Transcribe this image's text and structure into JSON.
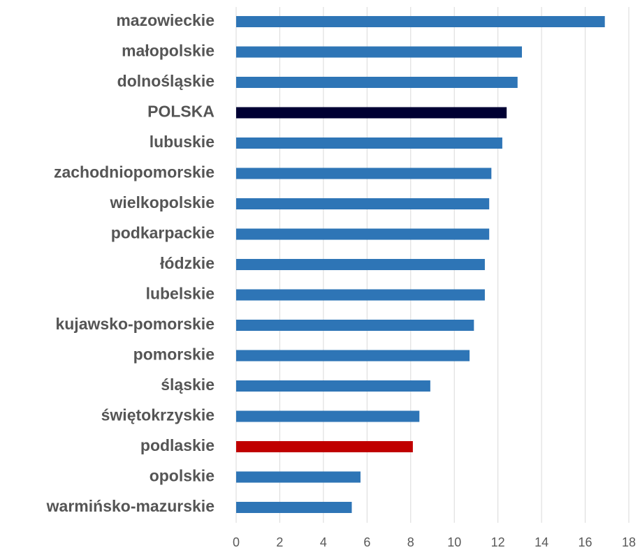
{
  "chart_data": {
    "type": "barh",
    "categories": [
      "mazowieckie",
      "małopolskie",
      "dolnośląskie",
      "POLSKA",
      "lubuskie",
      "zachodniopomorskie",
      "wielkopolskie",
      "podkarpackie",
      "łódzkie",
      "lubelskie",
      "kujawsko-pomorskie",
      "pomorskie",
      "śląskie",
      "świętokrzyskie",
      "podlaskie",
      "opolskie",
      "warmińsko-mazurskie"
    ],
    "values": [
      16.9,
      13.1,
      12.9,
      12.4,
      12.2,
      11.7,
      11.6,
      11.6,
      11.4,
      11.4,
      10.9,
      10.7,
      8.9,
      8.4,
      8.1,
      5.7,
      5.3
    ],
    "colors": [
      "#2e75b6",
      "#2e75b6",
      "#2e75b6",
      "#000033",
      "#2e75b6",
      "#2e75b6",
      "#2e75b6",
      "#2e75b6",
      "#2e75b6",
      "#2e75b6",
      "#2e75b6",
      "#2e75b6",
      "#2e75b6",
      "#2e75b6",
      "#c00000",
      "#2e75b6",
      "#2e75b6"
    ],
    "xlim": [
      0,
      18
    ],
    "xticks": [
      0,
      2,
      4,
      6,
      8,
      10,
      12,
      14,
      16,
      18
    ],
    "grid": true
  }
}
